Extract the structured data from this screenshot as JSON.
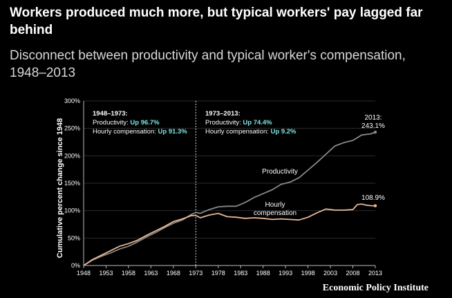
{
  "header": {
    "title": "Workers produced much more, but typical workers' pay lagged far behind",
    "subtitle": "Disconnect between productivity and typical worker's compensation, 1948–2013"
  },
  "source": "Economic Policy Institute",
  "colors": {
    "background": "#000000",
    "productivity": "#8a8a8a",
    "compensation": "#e8b896",
    "highlight": "#7fe6e6",
    "text": "#ffffff"
  },
  "chart_data": {
    "type": "line",
    "ylabel": "Cumulative percent change since 1948",
    "xlim": [
      1948,
      2013
    ],
    "ylim": [
      0,
      300
    ],
    "x_ticks": [
      1948,
      1953,
      1958,
      1963,
      1968,
      1973,
      1978,
      1983,
      1988,
      1993,
      1998,
      2003,
      2008,
      2013
    ],
    "y_ticks": [
      0,
      50,
      100,
      150,
      200,
      250,
      300
    ],
    "y_tick_labels": [
      "0%",
      "50%",
      "100%",
      "150%",
      "200%",
      "250%",
      "300%"
    ],
    "divider_year": 1973,
    "series": [
      {
        "name": "Productivity",
        "x": [
          1948,
          1950,
          1952,
          1954,
          1956,
          1958,
          1960,
          1962,
          1964,
          1966,
          1968,
          1970,
          1972,
          1973,
          1974,
          1976,
          1978,
          1980,
          1982,
          1984,
          1986,
          1988,
          1990,
          1992,
          1994,
          1996,
          1998,
          2000,
          2002,
          2004,
          2006,
          2008,
          2010,
          2012,
          2013
        ],
        "values": [
          0,
          10,
          17,
          23,
          30,
          35,
          43,
          52,
          60,
          69,
          77,
          83,
          93,
          96.7,
          95,
          102,
          107,
          108,
          108,
          115,
          124,
          131,
          138,
          148,
          152,
          160,
          174,
          188,
          203,
          218,
          224,
          228,
          238,
          240,
          243.1
        ]
      },
      {
        "name": "Hourly compensation",
        "x": [
          1948,
          1950,
          1952,
          1954,
          1956,
          1958,
          1960,
          1962,
          1964,
          1966,
          1968,
          1970,
          1972,
          1973,
          1974,
          1976,
          1978,
          1980,
          1982,
          1984,
          1986,
          1988,
          1990,
          1992,
          1994,
          1996,
          1998,
          2000,
          2002,
          2004,
          2006,
          2008,
          2009,
          2010,
          2011,
          2012,
          2013
        ],
        "values": [
          0,
          11,
          19,
          27,
          35,
          40,
          46,
          55,
          63,
          71,
          80,
          85,
          91,
          91.3,
          87,
          92,
          95,
          89,
          88,
          86,
          87,
          86,
          84,
          85,
          84,
          83,
          88,
          96,
          103,
          101,
          101,
          102,
          111,
          112,
          110,
          109,
          108.9
        ]
      }
    ],
    "annotations": {
      "period1": {
        "heading": "1948–1973:",
        "prod_prefix": "Productivity: ",
        "prod_value": "Up 96.7%",
        "comp_prefix": "Hourly compensation: ",
        "comp_value": "Up 91.3%"
      },
      "period2": {
        "heading": "1973–2013:",
        "prod_prefix": "Productivity: ",
        "prod_value": "Up 74.4%",
        "comp_prefix": "Hourly compensation: ",
        "comp_value": "Up 9.2%"
      },
      "end_label_year": "2013:",
      "end_label_value": "243.1%",
      "productivity_label": "Productivity",
      "compensation_label_1": "Hourly",
      "compensation_label_2": "compensation",
      "compensation_end_value": "108.9%"
    }
  }
}
